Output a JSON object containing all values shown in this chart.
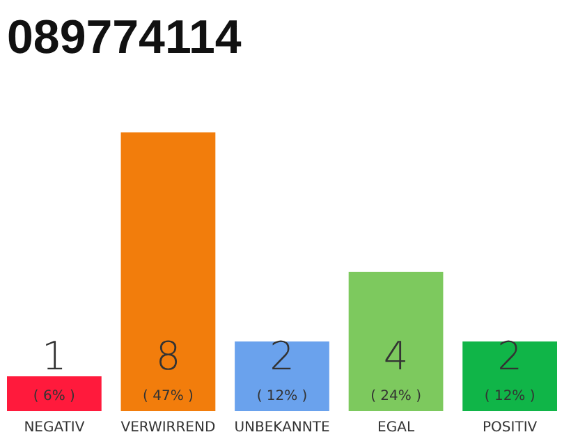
{
  "chart_data": {
    "type": "bar",
    "title": "089774114",
    "categories": [
      "NEGATIV",
      "VERWIRREND",
      "UNBEKANNTE",
      "EGAL",
      "POSITIV"
    ],
    "values": [
      1,
      8,
      2,
      4,
      2
    ],
    "colors": [
      "#ff1a3c",
      "#f27d0c",
      "#6aa2ed",
      "#7dc95e",
      "#10b548"
    ],
    "data_labels": true,
    "annotations": [
      {
        "text": "( 6% )",
        "x": "NEGATIV",
        "y": 0
      },
      {
        "text": "( 47% )",
        "x": "VERWIRREND",
        "y": 0
      },
      {
        "text": "( 12% )",
        "x": "UNBEKANNTE",
        "y": 0
      },
      {
        "text": "( 24% )",
        "x": "EGAL",
        "y": 0
      },
      {
        "text": "( 12% )",
        "x": "POSITIV",
        "y": 0
      }
    ],
    "tick_labels": "x"
  }
}
